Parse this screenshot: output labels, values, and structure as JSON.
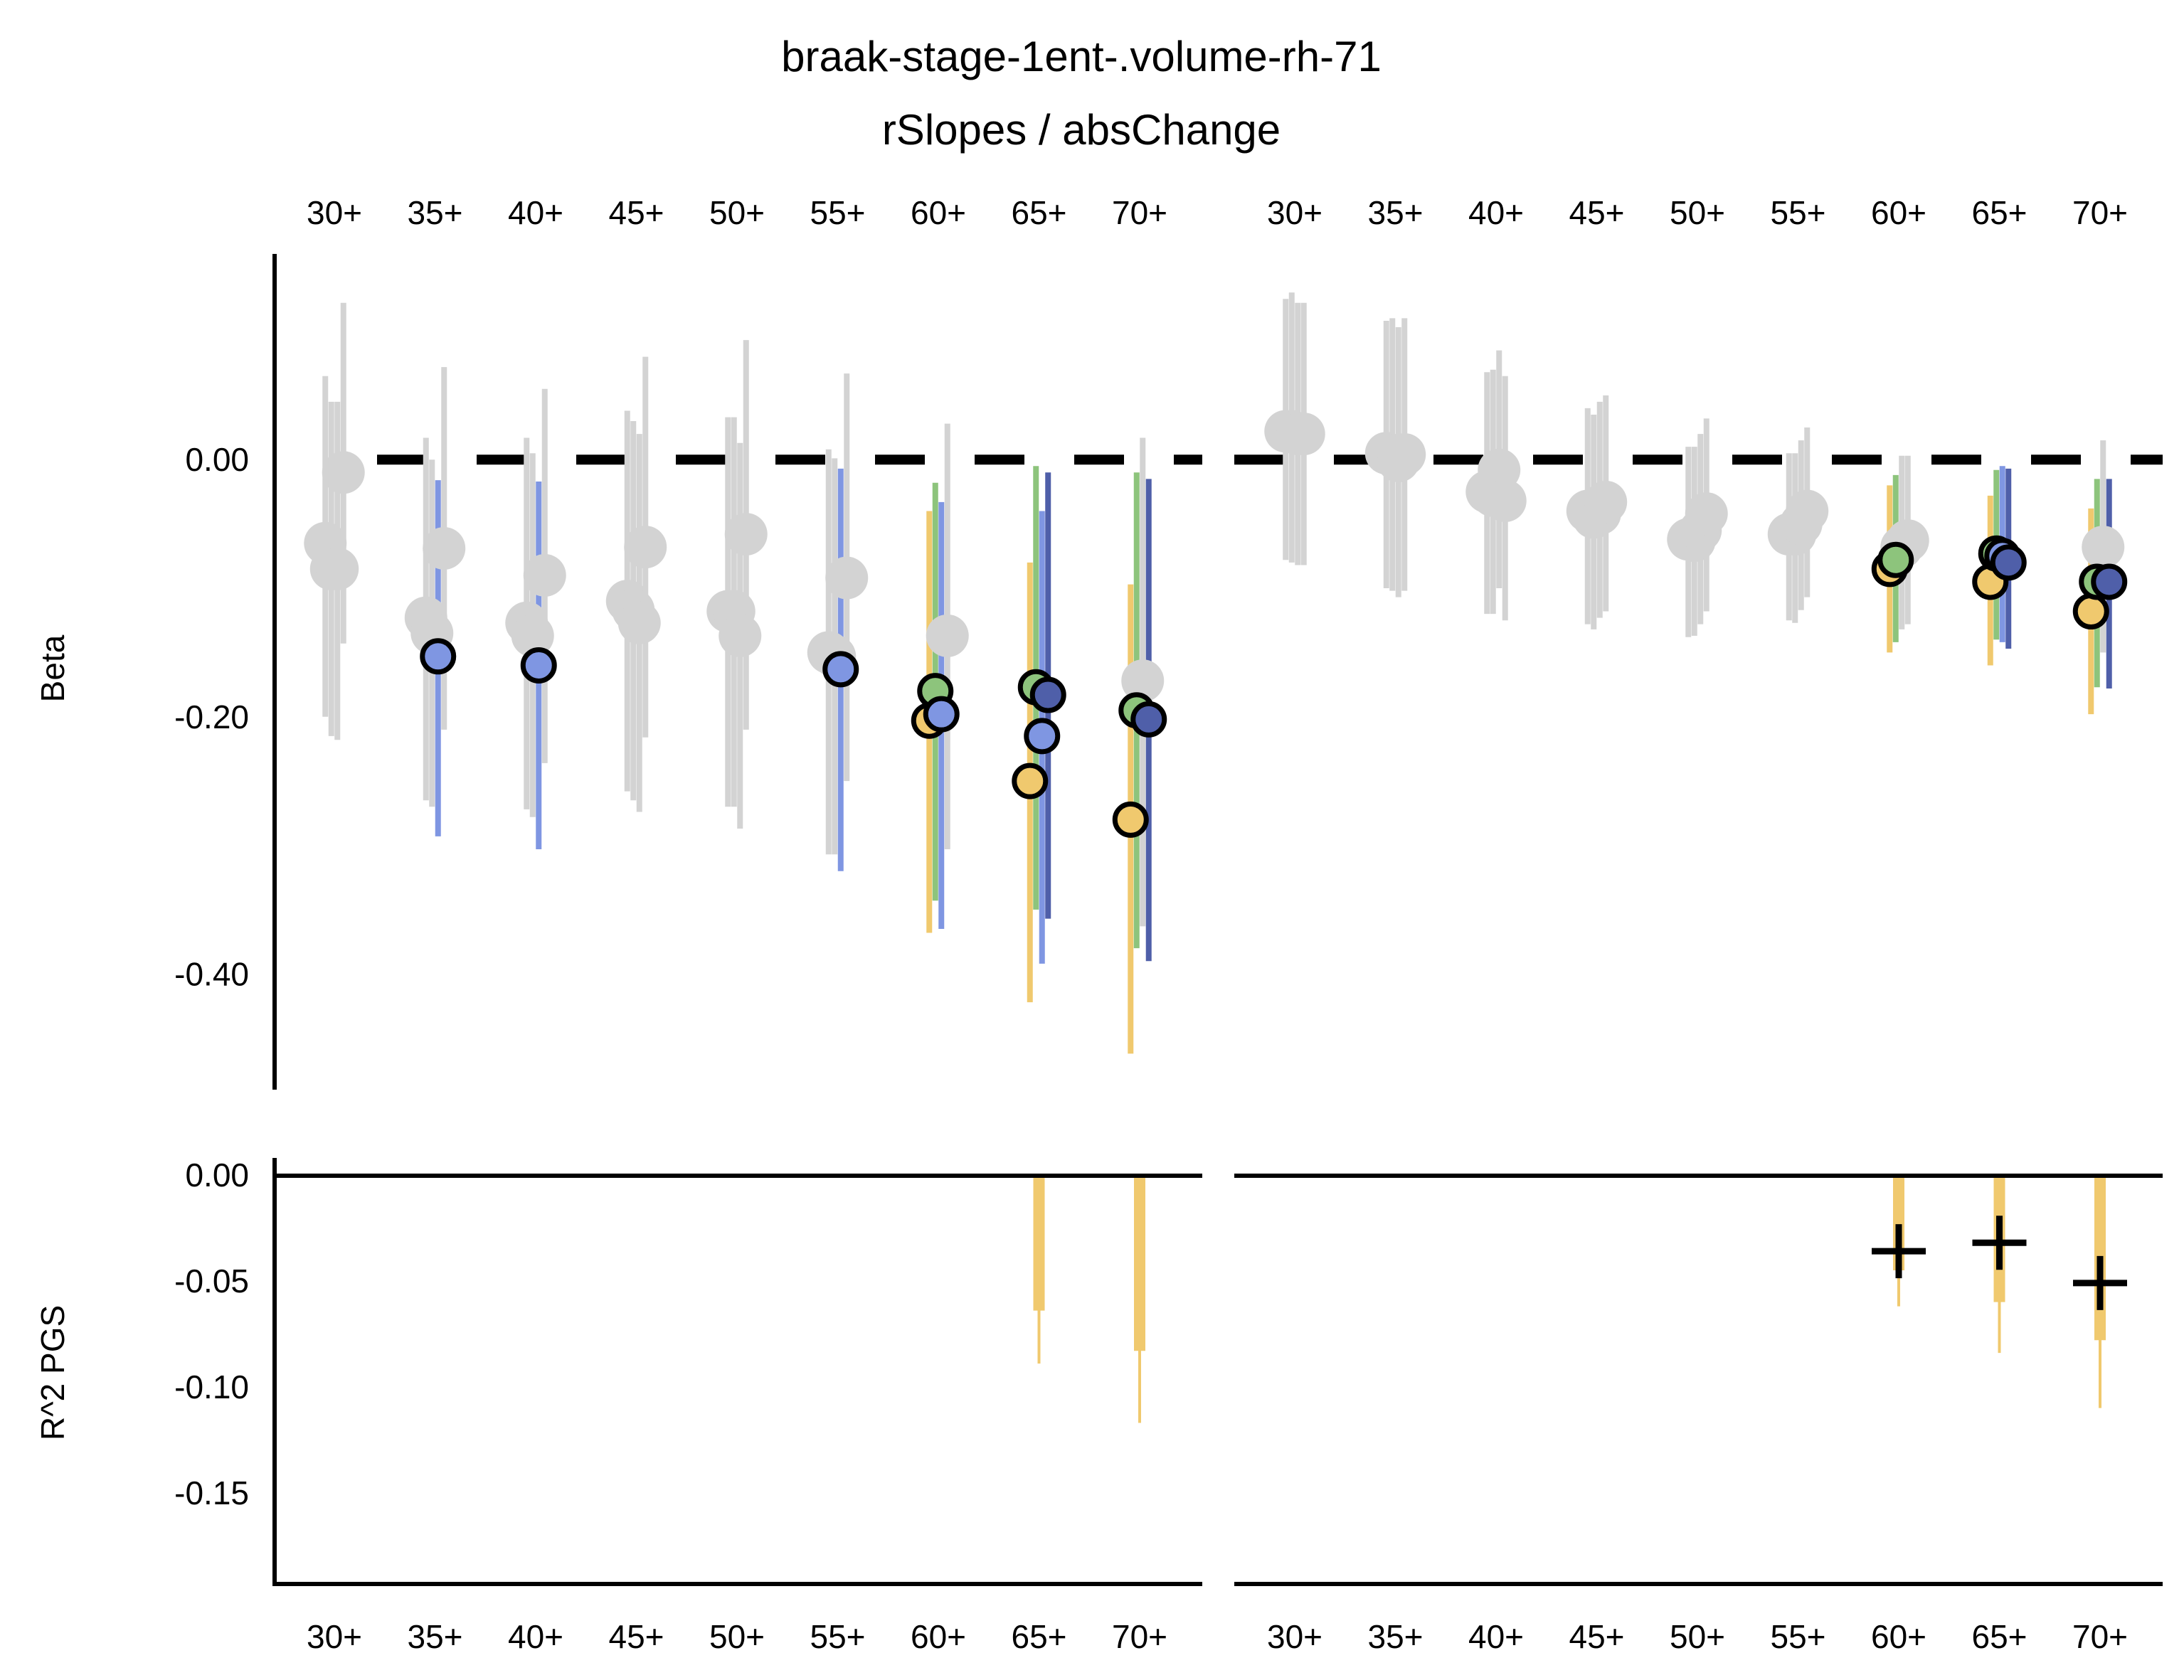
{
  "chart_data": {
    "type": "scatter",
    "title": "braak-stage-1ent-.volume-rh-71",
    "subtitle": "rSlopes / absChange",
    "categories": [
      "30+",
      "35+",
      "40+",
      "45+",
      "50+",
      "55+",
      "60+",
      "65+",
      "70+"
    ],
    "colors": {
      "gray": "#d3d3d3",
      "yellow": "#f0c96e",
      "green": "#8dc47c",
      "blue": "#7f96e2",
      "navy": "#4f5fa9",
      "black": "#000000"
    },
    "beta_panel": {
      "ylabel": "Beta",
      "y_ticks": [
        "0.00",
        "-0.20",
        "-0.40"
      ],
      "y_tick_values": [
        0,
        -0.2,
        -0.4
      ],
      "ylim": [
        -0.49,
        0.16
      ],
      "zero_line": "dashed",
      "facets": [
        {
          "points": [
            {
              "cat": "30+",
              "dx": -0.09,
              "y": -0.065,
              "lo": -0.2,
              "hi": 0.065,
              "color": "gray",
              "sig": false
            },
            {
              "cat": "30+",
              "dx": -0.03,
              "y": -0.085,
              "lo": -0.215,
              "hi": 0.045,
              "color": "gray",
              "sig": false
            },
            {
              "cat": "30+",
              "dx": 0.03,
              "y": -0.085,
              "lo": -0.218,
              "hi": 0.045,
              "color": "gray",
              "sig": false
            },
            {
              "cat": "30+",
              "dx": 0.09,
              "y": -0.01,
              "lo": -0.143,
              "hi": 0.122,
              "color": "gray",
              "sig": false
            },
            {
              "cat": "35+",
              "dx": -0.09,
              "y": -0.123,
              "lo": -0.265,
              "hi": 0.017,
              "color": "gray",
              "sig": false
            },
            {
              "cat": "35+",
              "dx": -0.03,
              "y": -0.135,
              "lo": -0.27,
              "hi": 0.0,
              "color": "gray",
              "sig": false
            },
            {
              "cat": "35+",
              "dx": 0.03,
              "y": -0.153,
              "lo": -0.293,
              "hi": -0.016,
              "color": "blue",
              "sig": true
            },
            {
              "cat": "35+",
              "dx": 0.09,
              "y": -0.069,
              "lo": -0.21,
              "hi": 0.072,
              "color": "gray",
              "sig": false
            },
            {
              "cat": "40+",
              "dx": -0.09,
              "y": -0.127,
              "lo": -0.272,
              "hi": 0.017,
              "color": "gray",
              "sig": false
            },
            {
              "cat": "40+",
              "dx": -0.03,
              "y": -0.137,
              "lo": -0.278,
              "hi": 0.005,
              "color": "gray",
              "sig": false
            },
            {
              "cat": "40+",
              "dx": 0.03,
              "y": -0.16,
              "lo": -0.303,
              "hi": -0.017,
              "color": "blue",
              "sig": true
            },
            {
              "cat": "40+",
              "dx": 0.09,
              "y": -0.09,
              "lo": -0.236,
              "hi": 0.055,
              "color": "gray",
              "sig": false
            },
            {
              "cat": "45+",
              "dx": -0.09,
              "y": -0.11,
              "lo": -0.258,
              "hi": 0.038,
              "color": "gray",
              "sig": false
            },
            {
              "cat": "45+",
              "dx": -0.03,
              "y": -0.117,
              "lo": -0.265,
              "hi": 0.03,
              "color": "gray",
              "sig": false
            },
            {
              "cat": "45+",
              "dx": 0.03,
              "y": -0.127,
              "lo": -0.274,
              "hi": 0.02,
              "color": "gray",
              "sig": false
            },
            {
              "cat": "45+",
              "dx": 0.09,
              "y": -0.068,
              "lo": -0.216,
              "hi": 0.08,
              "color": "gray",
              "sig": false
            },
            {
              "cat": "50+",
              "dx": -0.09,
              "y": -0.118,
              "lo": -0.27,
              "hi": 0.033,
              "color": "gray",
              "sig": false
            },
            {
              "cat": "50+",
              "dx": -0.03,
              "y": -0.118,
              "lo": -0.27,
              "hi": 0.033,
              "color": "gray",
              "sig": false
            },
            {
              "cat": "50+",
              "dx": 0.03,
              "y": -0.137,
              "lo": -0.287,
              "hi": 0.013,
              "color": "gray",
              "sig": false
            },
            {
              "cat": "50+",
              "dx": 0.09,
              "y": -0.058,
              "lo": -0.21,
              "hi": 0.093,
              "color": "gray",
              "sig": false
            },
            {
              "cat": "55+",
              "dx": -0.09,
              "y": -0.15,
              "lo": -0.307,
              "hi": 0.008,
              "color": "gray",
              "sig": false
            },
            {
              "cat": "55+",
              "dx": -0.03,
              "y": -0.153,
              "lo": -0.307,
              "hi": 0.001,
              "color": "gray",
              "sig": false
            },
            {
              "cat": "55+",
              "dx": 0.03,
              "y": -0.163,
              "lo": -0.32,
              "hi": -0.007,
              "color": "blue",
              "sig": true
            },
            {
              "cat": "55+",
              "dx": 0.09,
              "y": -0.092,
              "lo": -0.25,
              "hi": 0.067,
              "color": "gray",
              "sig": false
            },
            {
              "cat": "60+",
              "dx": -0.09,
              "y": -0.203,
              "lo": -0.368,
              "hi": -0.04,
              "color": "yellow",
              "sig": true
            },
            {
              "cat": "60+",
              "dx": -0.03,
              "y": -0.18,
              "lo": -0.343,
              "hi": -0.018,
              "color": "green",
              "sig": true
            },
            {
              "cat": "60+",
              "dx": 0.03,
              "y": -0.198,
              "lo": -0.365,
              "hi": -0.033,
              "color": "blue",
              "sig": true
            },
            {
              "cat": "60+",
              "dx": 0.09,
              "y": -0.137,
              "lo": -0.303,
              "hi": 0.028,
              "color": "gray",
              "sig": false
            },
            {
              "cat": "65+",
              "dx": -0.09,
              "y": -0.25,
              "lo": -0.422,
              "hi": -0.08,
              "color": "yellow",
              "sig": true
            },
            {
              "cat": "65+",
              "dx": -0.03,
              "y": -0.177,
              "lo": -0.35,
              "hi": -0.005,
              "color": "green",
              "sig": true
            },
            {
              "cat": "65+",
              "dx": 0.03,
              "y": -0.215,
              "lo": -0.392,
              "hi": -0.04,
              "color": "blue",
              "sig": true
            },
            {
              "cat": "65+",
              "dx": 0.09,
              "y": -0.183,
              "lo": -0.357,
              "hi": -0.01,
              "color": "navy",
              "sig": true
            },
            {
              "cat": "70+",
              "dx": -0.09,
              "y": -0.28,
              "lo": -0.462,
              "hi": -0.097,
              "color": "yellow",
              "sig": true
            },
            {
              "cat": "70+",
              "dx": -0.03,
              "y": -0.195,
              "lo": -0.38,
              "hi": -0.01,
              "color": "green",
              "sig": true
            },
            {
              "cat": "70+",
              "dx": 0.03,
              "y": -0.172,
              "lo": -0.363,
              "hi": 0.017,
              "color": "gray",
              "sig": false
            },
            {
              "cat": "70+",
              "dx": 0.09,
              "y": -0.202,
              "lo": -0.39,
              "hi": -0.015,
              "color": "navy",
              "sig": true
            }
          ]
        },
        {
          "points": [
            {
              "cat": "30+",
              "dx": -0.09,
              "y": 0.022,
              "lo": -0.078,
              "hi": 0.125,
              "color": "gray",
              "sig": false
            },
            {
              "cat": "30+",
              "dx": -0.03,
              "y": 0.022,
              "lo": -0.08,
              "hi": 0.13,
              "color": "gray",
              "sig": false
            },
            {
              "cat": "30+",
              "dx": 0.03,
              "y": 0.02,
              "lo": -0.082,
              "hi": 0.122,
              "color": "gray",
              "sig": false
            },
            {
              "cat": "30+",
              "dx": 0.09,
              "y": 0.02,
              "lo": -0.082,
              "hi": 0.122,
              "color": "gray",
              "sig": false
            },
            {
              "cat": "35+",
              "dx": -0.09,
              "y": 0.005,
              "lo": -0.1,
              "hi": 0.108,
              "color": "gray",
              "sig": false
            },
            {
              "cat": "35+",
              "dx": -0.03,
              "y": 0.003,
              "lo": -0.102,
              "hi": 0.11,
              "color": "gray",
              "sig": false
            },
            {
              "cat": "35+",
              "dx": 0.03,
              "y": -0.001,
              "lo": -0.107,
              "hi": 0.103,
              "color": "gray",
              "sig": false
            },
            {
              "cat": "35+",
              "dx": 0.09,
              "y": 0.004,
              "lo": -0.102,
              "hi": 0.11,
              "color": "gray",
              "sig": false
            },
            {
              "cat": "40+",
              "dx": -0.09,
              "y": -0.025,
              "lo": -0.12,
              "hi": 0.068,
              "color": "gray",
              "sig": false
            },
            {
              "cat": "40+",
              "dx": -0.03,
              "y": -0.028,
              "lo": -0.12,
              "hi": 0.07,
              "color": "gray",
              "sig": false
            },
            {
              "cat": "40+",
              "dx": 0.03,
              "y": -0.008,
              "lo": -0.1,
              "hi": 0.085,
              "color": "gray",
              "sig": false
            },
            {
              "cat": "40+",
              "dx": 0.09,
              "y": -0.032,
              "lo": -0.125,
              "hi": 0.065,
              "color": "gray",
              "sig": false
            },
            {
              "cat": "45+",
              "dx": -0.09,
              "y": -0.04,
              "lo": -0.128,
              "hi": 0.04,
              "color": "gray",
              "sig": false
            },
            {
              "cat": "45+",
              "dx": -0.03,
              "y": -0.045,
              "lo": -0.132,
              "hi": 0.035,
              "color": "gray",
              "sig": false
            },
            {
              "cat": "45+",
              "dx": 0.03,
              "y": -0.042,
              "lo": -0.123,
              "hi": 0.045,
              "color": "gray",
              "sig": false
            },
            {
              "cat": "45+",
              "dx": 0.09,
              "y": -0.033,
              "lo": -0.118,
              "hi": 0.05,
              "color": "gray",
              "sig": false
            },
            {
              "cat": "50+",
              "dx": -0.09,
              "y": -0.062,
              "lo": -0.138,
              "hi": 0.01,
              "color": "gray",
              "sig": false
            },
            {
              "cat": "50+",
              "dx": -0.03,
              "y": -0.063,
              "lo": -0.137,
              "hi": 0.01,
              "color": "gray",
              "sig": false
            },
            {
              "cat": "50+",
              "dx": 0.03,
              "y": -0.055,
              "lo": -0.128,
              "hi": 0.02,
              "color": "gray",
              "sig": false
            },
            {
              "cat": "50+",
              "dx": 0.09,
              "y": -0.042,
              "lo": -0.118,
              "hi": 0.032,
              "color": "gray",
              "sig": false
            },
            {
              "cat": "55+",
              "dx": -0.09,
              "y": -0.058,
              "lo": -0.125,
              "hi": 0.005,
              "color": "gray",
              "sig": false
            },
            {
              "cat": "55+",
              "dx": -0.03,
              "y": -0.058,
              "lo": -0.127,
              "hi": 0.005,
              "color": "gray",
              "sig": false
            },
            {
              "cat": "55+",
              "dx": 0.03,
              "y": -0.05,
              "lo": -0.117,
              "hi": 0.015,
              "color": "gray",
              "sig": false
            },
            {
              "cat": "55+",
              "dx": 0.09,
              "y": -0.04,
              "lo": -0.107,
              "hi": 0.025,
              "color": "gray",
              "sig": false
            },
            {
              "cat": "60+",
              "dx": -0.09,
              "y": -0.085,
              "lo": -0.15,
              "hi": -0.02,
              "color": "yellow",
              "sig": true
            },
            {
              "cat": "60+",
              "dx": -0.03,
              "y": -0.078,
              "lo": -0.142,
              "hi": -0.012,
              "color": "green",
              "sig": true
            },
            {
              "cat": "60+",
              "dx": 0.03,
              "y": -0.068,
              "lo": -0.132,
              "hi": 0.003,
              "color": "gray",
              "sig": false
            },
            {
              "cat": "60+",
              "dx": 0.09,
              "y": -0.063,
              "lo": -0.128,
              "hi": 0.003,
              "color": "gray",
              "sig": false
            },
            {
              "cat": "65+",
              "dx": -0.09,
              "y": -0.095,
              "lo": -0.16,
              "hi": -0.028,
              "color": "yellow",
              "sig": true
            },
            {
              "cat": "65+",
              "dx": -0.03,
              "y": -0.073,
              "lo": -0.14,
              "hi": -0.008,
              "color": "green",
              "sig": true
            },
            {
              "cat": "65+",
              "dx": 0.03,
              "y": -0.075,
              "lo": -0.142,
              "hi": -0.005,
              "color": "blue",
              "sig": true
            },
            {
              "cat": "65+",
              "dx": 0.09,
              "y": -0.08,
              "lo": -0.147,
              "hi": -0.007,
              "color": "navy",
              "sig": true
            },
            {
              "cat": "70+",
              "dx": -0.09,
              "y": -0.118,
              "lo": -0.198,
              "hi": -0.038,
              "color": "yellow",
              "sig": true
            },
            {
              "cat": "70+",
              "dx": -0.03,
              "y": -0.095,
              "lo": -0.177,
              "hi": -0.015,
              "color": "green",
              "sig": true
            },
            {
              "cat": "70+",
              "dx": 0.03,
              "y": -0.068,
              "lo": -0.15,
              "hi": 0.015,
              "color": "gray",
              "sig": false
            },
            {
              "cat": "70+",
              "dx": 0.09,
              "y": -0.095,
              "lo": -0.178,
              "hi": -0.015,
              "color": "navy",
              "sig": true
            }
          ]
        }
      ]
    },
    "r2_panel": {
      "ylabel": "R^2 PGS",
      "y_ticks": [
        "0.00",
        "-0.05",
        "-0.10",
        "-0.15"
      ],
      "y_tick_values": [
        0,
        -0.05,
        -0.1,
        -0.15
      ],
      "ylim": [
        -0.193,
        0.008
      ],
      "facets": [
        {
          "bars": [
            {
              "cat": "65+",
              "inner": -0.064,
              "outer": -0.089,
              "color": "yellow"
            },
            {
              "cat": "70+",
              "inner": -0.083,
              "outer": -0.117,
              "color": "yellow"
            }
          ],
          "markers": []
        },
        {
          "bars": [
            {
              "cat": "60+",
              "inner": -0.045,
              "outer": -0.062,
              "color": "yellow"
            },
            {
              "cat": "65+",
              "inner": -0.06,
              "outer": -0.084,
              "color": "yellow"
            },
            {
              "cat": "70+",
              "inner": -0.078,
              "outer": -0.11,
              "color": "yellow"
            }
          ],
          "markers": [
            {
              "cat": "60+",
              "y": -0.036
            },
            {
              "cat": "65+",
              "y": -0.032
            },
            {
              "cat": "70+",
              "y": -0.051
            }
          ]
        }
      ]
    }
  }
}
